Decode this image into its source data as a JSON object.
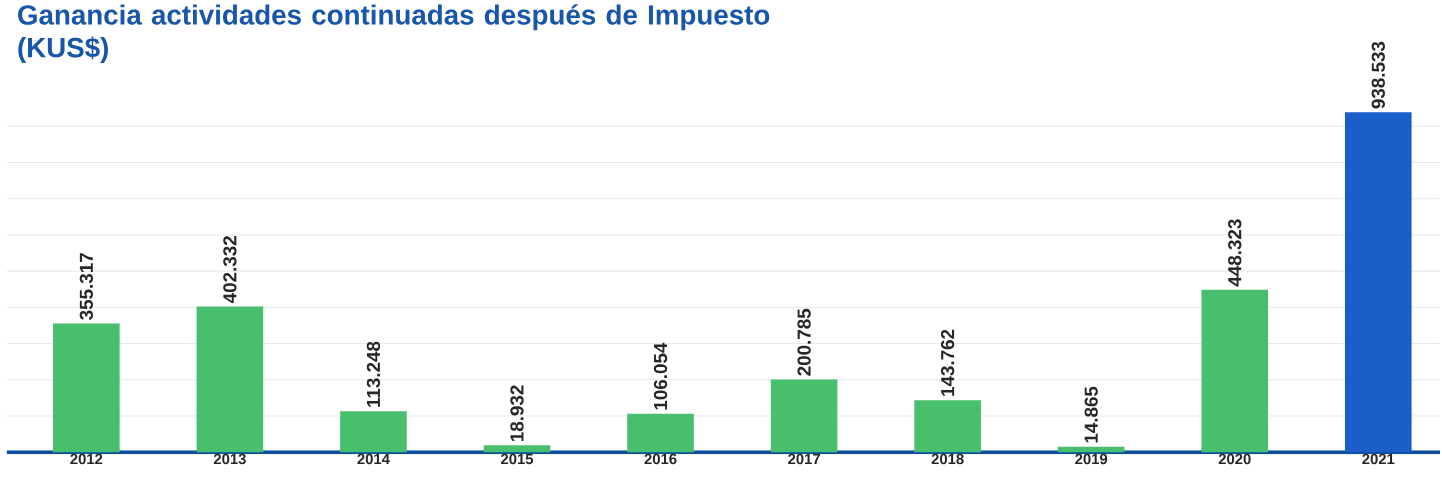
{
  "chart_data": {
    "type": "bar",
    "title": "Ganancia actividades continuadas después de Impuesto (KUS$)",
    "categories": [
      "2012",
      "2013",
      "2014",
      "2015",
      "2016",
      "2017",
      "2018",
      "2019",
      "2020",
      "2021"
    ],
    "values": [
      355317,
      402332,
      113248,
      18932,
      106054,
      200785,
      143762,
      14865,
      448323,
      938533
    ],
    "value_labels": [
      "355.317",
      "402.332",
      "113.248",
      "18.932",
      "106.054",
      "200.785",
      "143.762",
      "14.865",
      "448.323",
      "938.533"
    ],
    "colors": [
      "#48bf6c",
      "#48bf6c",
      "#48bf6c",
      "#48bf6c",
      "#48bf6c",
      "#48bf6c",
      "#48bf6c",
      "#48bf6c",
      "#48bf6c",
      "#1a5fc9"
    ],
    "grid": "y"
  }
}
